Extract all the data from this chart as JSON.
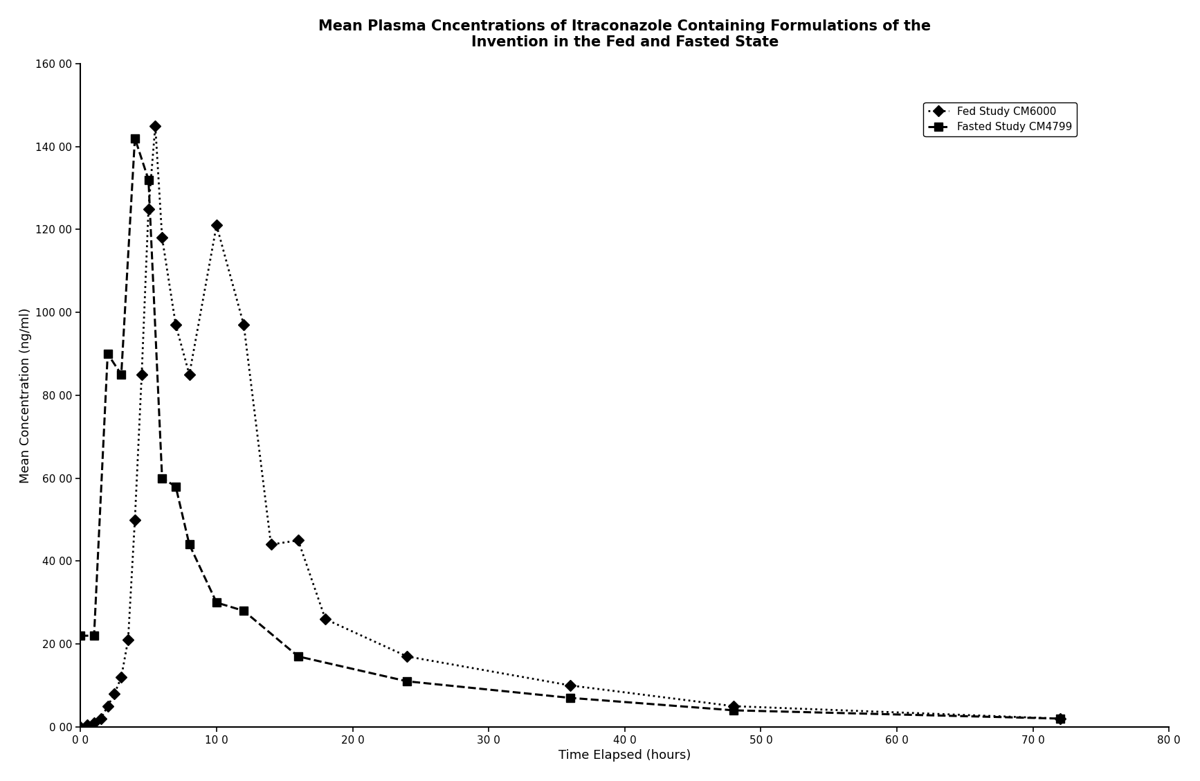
{
  "title": "Mean Plasma Cncentrations of Itraconazole Containing Formulations of the\nInvention in the Fed and Fasted State",
  "xlabel": "Time Elapsed (hours)",
  "ylabel": "Mean Concentration (ng/ml)",
  "xlim": [
    0,
    800
  ],
  "ylim": [
    0,
    16000
  ],
  "yticks": [
    0,
    2000,
    4000,
    6000,
    8000,
    10000,
    12000,
    14000,
    16000
  ],
  "ytick_labels": [
    "0 00",
    "20 00",
    "40 00",
    "60 00",
    "80 00",
    "100 00",
    "120 00",
    "140 00",
    "160 00"
  ],
  "xticks": [
    0,
    100,
    200,
    300,
    400,
    500,
    600,
    700,
    800
  ],
  "xtick_labels": [
    "0 0",
    "10 0",
    "20 0",
    "30 0",
    "40 0",
    "50 0",
    "60 0",
    "70 0",
    "80 0"
  ],
  "fed_x": [
    0,
    5,
    10,
    15,
    20,
    25,
    30,
    35,
    40,
    45,
    50,
    55,
    60,
    70,
    80,
    100,
    120,
    140,
    160,
    180,
    240,
    360,
    480,
    720
  ],
  "fed_y": [
    0,
    50,
    100,
    200,
    500,
    800,
    1200,
    2100,
    5000,
    8500,
    12500,
    14500,
    11800,
    9700,
    8500,
    12100,
    9700,
    4400,
    4500,
    2600,
    1700,
    1000,
    500,
    200
  ],
  "fasted_x": [
    0,
    10,
    20,
    30,
    40,
    50,
    60,
    70,
    80,
    100,
    120,
    160,
    240,
    360,
    480,
    720
  ],
  "fasted_y": [
    2200,
    2200,
    9000,
    8500,
    14200,
    13200,
    6000,
    5800,
    4400,
    3000,
    2800,
    1700,
    1100,
    700,
    400,
    200
  ],
  "legend_fed": "Fed Study CM6000",
  "legend_fasted": "Fasted Study CM4799",
  "background_color": "#ffffff",
  "line_color": "#000000"
}
